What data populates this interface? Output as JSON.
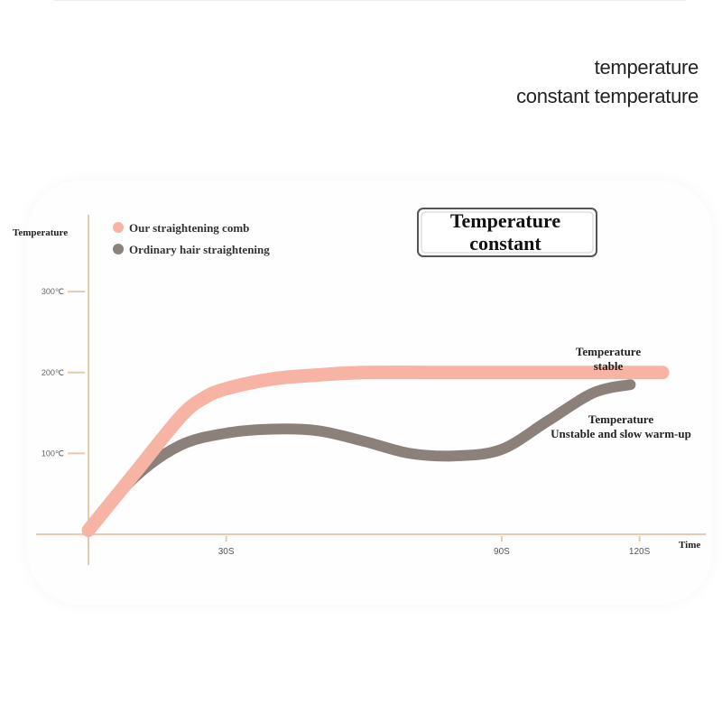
{
  "header": {
    "line1": "temperature",
    "line2": "constant temperature"
  },
  "colors": {
    "axis": "#e9c9a8",
    "our": "#f7b3a3",
    "ordinary": "#8c807a",
    "badge_border": "#555555"
  },
  "chart_data": {
    "type": "line",
    "ylabel": "Temperature",
    "xlabel": "Time",
    "y_ticks": [
      {
        "value": 100,
        "label": "100℃"
      },
      {
        "value": 200,
        "label": "200℃"
      },
      {
        "value": 300,
        "label": "300℃"
      }
    ],
    "x_ticks": [
      {
        "value": 30,
        "label": "30S"
      },
      {
        "value": 90,
        "label": "90S"
      },
      {
        "value": 120,
        "label": "120S"
      }
    ],
    "xlim": [
      0,
      136
    ],
    "ylim": [
      0,
      395
    ],
    "legend": [
      {
        "name": "Our straightening comb",
        "color": "#f7b3a3"
      },
      {
        "name": "Ordinary hair straightening",
        "color": "#8c807a"
      }
    ],
    "series": [
      {
        "name": "Our straightening comb",
        "x": [
          0,
          10,
          20,
          25,
          30,
          40,
          50,
          60,
          75,
          90,
          105,
          115,
          125
        ],
        "y": [
          5,
          75,
          145,
          168,
          180,
          192,
          197,
          200,
          200,
          200,
          200,
          200,
          200
        ]
      },
      {
        "name": "Ordinary hair straightening",
        "x": [
          0,
          10,
          20,
          30,
          40,
          50,
          60,
          70,
          80,
          90,
          100,
          110,
          118
        ],
        "y": [
          5,
          70,
          110,
          125,
          130,
          128,
          115,
          100,
          97,
          105,
          140,
          175,
          185
        ]
      }
    ],
    "annotations": {
      "badge_line1": "Temperature",
      "badge_line2": "constant",
      "stable_line1": "Temperature",
      "stable_line2": "stable",
      "unstable_line1": "Temperature",
      "unstable_line2": "Unstable and slow warm-up"
    }
  }
}
